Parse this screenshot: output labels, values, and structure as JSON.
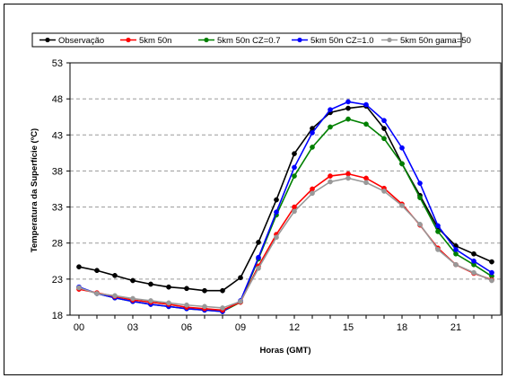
{
  "chart_data": {
    "type": "line",
    "xlabel": "Horas (GMT)",
    "ylabel": "Temperatura da Superfície (ºC)",
    "xlim": [
      -0.5,
      23.5
    ],
    "ylim": [
      18,
      53
    ],
    "y_ticks": [
      18,
      23,
      28,
      33,
      38,
      43,
      48,
      53
    ],
    "y_tick_labels": [
      "18",
      "23",
      "28",
      "33",
      "38",
      "43",
      "48",
      "53"
    ],
    "x_ticks": [
      0,
      3,
      6,
      9,
      12,
      15,
      18,
      21
    ],
    "x_tick_labels": [
      "00",
      "03",
      "06",
      "09",
      "12",
      "15",
      "18",
      "21"
    ],
    "grid": "horizontal dashed",
    "legend_position": "top",
    "x": [
      0,
      1,
      2,
      3,
      4,
      5,
      6,
      7,
      8,
      9,
      10,
      11,
      12,
      13,
      14,
      15,
      16,
      17,
      18,
      19,
      20,
      21,
      22,
      23
    ],
    "series": [
      {
        "name": "Observação",
        "color": "#000000",
        "values": [
          24.7,
          24.2,
          23.5,
          22.8,
          22.3,
          21.9,
          21.7,
          21.4,
          21.4,
          23.2,
          28.1,
          34.0,
          40.4,
          43.9,
          46.1,
          46.7,
          47.0,
          43.9,
          39.0,
          34.6,
          30.1,
          27.6,
          26.5,
          25.4
        ]
      },
      {
        "name": "5km 50n",
        "color": "#ff0000",
        "values": [
          21.6,
          21.1,
          20.6,
          20.1,
          19.8,
          19.5,
          19.1,
          18.9,
          18.7,
          19.8,
          24.8,
          29.2,
          33.0,
          35.5,
          37.3,
          37.6,
          37.0,
          35.6,
          33.4,
          30.5,
          27.3,
          25.0,
          23.8,
          22.9
        ]
      },
      {
        "name": "5km 50n CZ=0.7",
        "color": "#008000",
        "values": [
          21.8,
          21.0,
          20.4,
          19.9,
          19.5,
          19.2,
          18.9,
          18.7,
          18.5,
          19.8,
          25.8,
          31.9,
          37.3,
          41.3,
          44.1,
          45.2,
          44.5,
          42.5,
          39.0,
          34.3,
          29.6,
          26.5,
          25.0,
          23.4
        ]
      },
      {
        "name": "5km 50n CZ=1.0",
        "color": "#0000ff",
        "values": [
          21.9,
          21.0,
          20.4,
          19.9,
          19.5,
          19.2,
          18.9,
          18.7,
          18.5,
          20.0,
          26.0,
          32.3,
          38.5,
          43.3,
          46.5,
          47.6,
          47.2,
          45.0,
          41.2,
          36.3,
          30.4,
          27.1,
          25.5,
          23.9
        ]
      },
      {
        "name": "5km 50n gama=50",
        "color": "#999999",
        "values": [
          21.8,
          21.0,
          20.7,
          20.3,
          20.0,
          19.7,
          19.4,
          19.2,
          19.0,
          19.9,
          24.5,
          28.8,
          32.4,
          34.9,
          36.5,
          37.0,
          36.4,
          35.2,
          33.2,
          30.6,
          27.1,
          25.0,
          23.9,
          22.8
        ]
      }
    ]
  }
}
